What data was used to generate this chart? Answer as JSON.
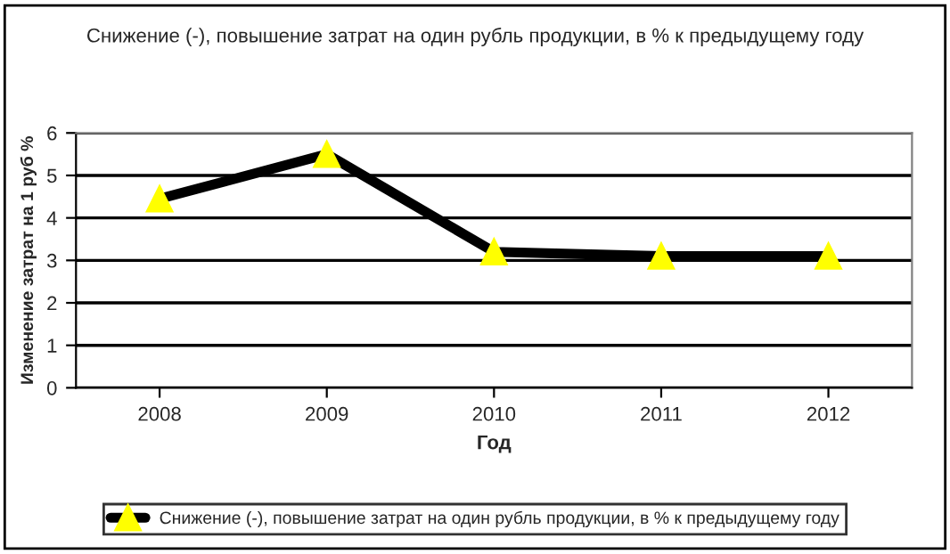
{
  "chart_data": {
    "type": "line",
    "title": "Снижение (-), повышение затрат на один рубль продукции, в % к предыдущему году",
    "xlabel": "Год",
    "ylabel": "Изменение затрат на 1 руб %",
    "categories": [
      "2008",
      "2009",
      "2010",
      "2011",
      "2012"
    ],
    "series": [
      {
        "name": "Снижение (-), повышение затрат на один рубль продукции, в % к предыдущему году",
        "color": "#000000",
        "values": [
          4.45,
          5.5,
          3.2,
          3.1,
          3.1
        ]
      }
    ],
    "ylim": [
      0,
      6
    ],
    "yticks": [
      0,
      1,
      2,
      3,
      4,
      5,
      6
    ],
    "grid": "y",
    "legend": "bottom",
    "marker": "triangle",
    "line_style": "solid"
  }
}
